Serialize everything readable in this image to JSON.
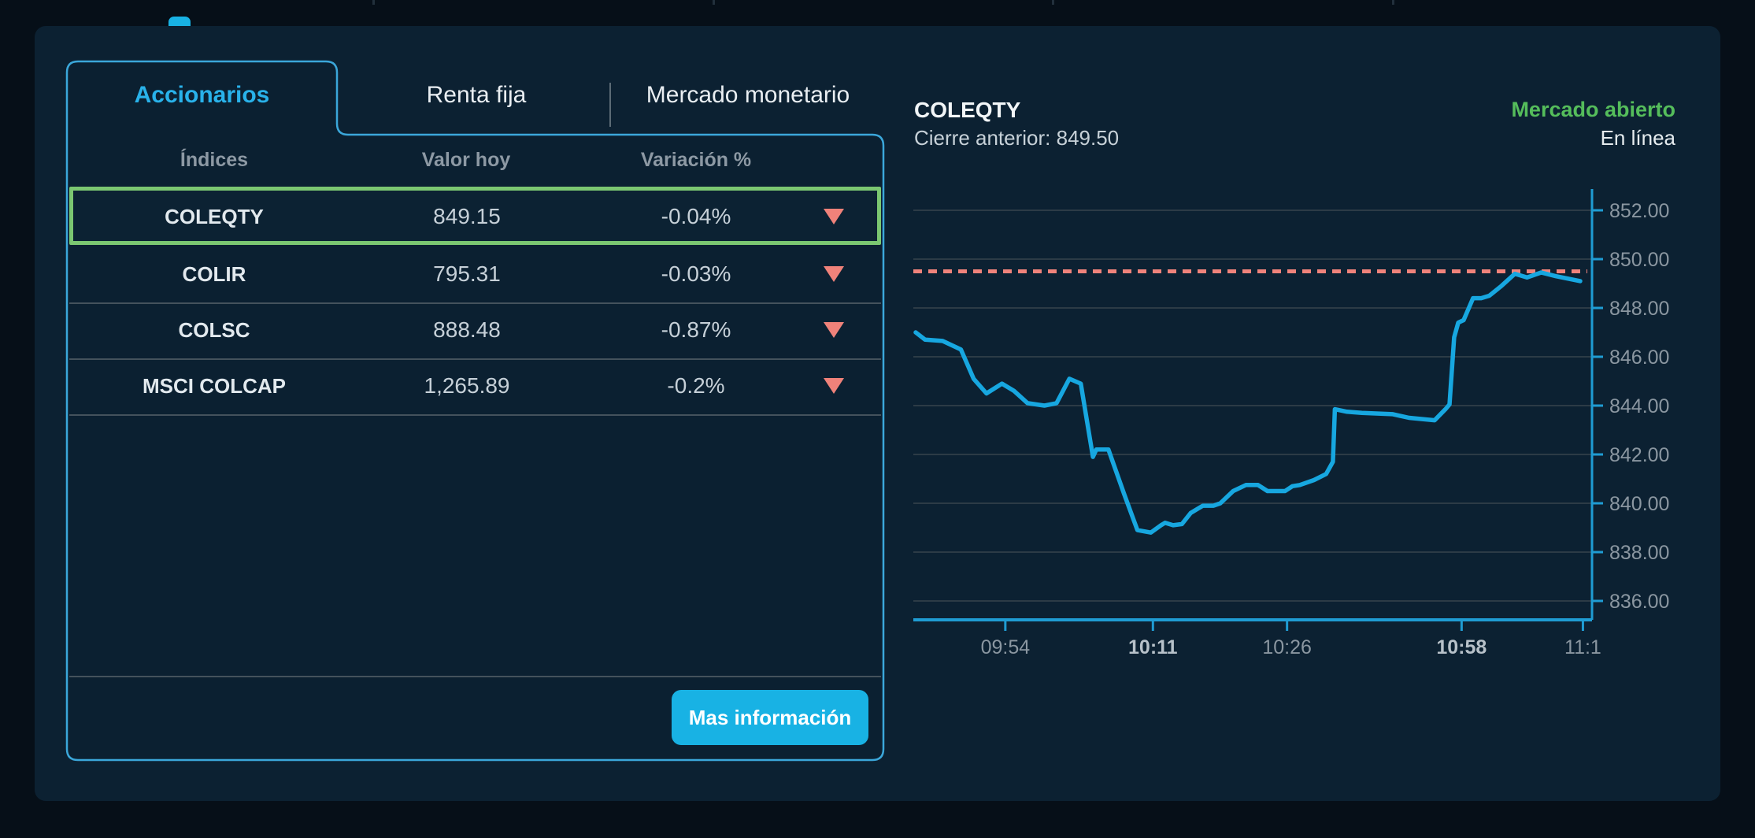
{
  "tabs": {
    "accionarios": "Accionarios",
    "renta_fija": "Renta fija",
    "mercado_monetario": "Mercado monetario"
  },
  "table": {
    "headers": {
      "indices": "Índices",
      "valor_hoy": "Valor hoy",
      "variacion": "Variación %"
    },
    "rows": [
      {
        "name": "COLEQTY",
        "value": "849.15",
        "variation": "-0.04%",
        "direction": "down",
        "selected": true
      },
      {
        "name": "COLIR",
        "value": "795.31",
        "variation": "-0.03%",
        "direction": "down",
        "selected": false
      },
      {
        "name": "COLSC",
        "value": "888.48",
        "variation": "-0.87%",
        "direction": "down",
        "selected": false
      },
      {
        "name": "MSCI COLCAP",
        "value": "1,265.89",
        "variation": "-0.2%",
        "direction": "down",
        "selected": false
      }
    ],
    "button_label": "Mas información"
  },
  "chart_header": {
    "title": "COLEQTY",
    "previous_close": "Cierre anterior: 849.50",
    "market_status": "Mercado abierto",
    "connection_status": "En línea"
  },
  "chart_data": {
    "type": "line",
    "title": "COLEQTY intraday price",
    "ylim": [
      836,
      852
    ],
    "y_ticks": [
      "852.00",
      "850.00",
      "848.00",
      "846.00",
      "844.00",
      "842.00",
      "840.00",
      "838.00",
      "836.00"
    ],
    "y_tick_values": [
      852,
      850,
      848,
      846,
      844,
      842,
      840,
      838,
      836
    ],
    "grid": true,
    "reference_line": {
      "value": 849.5,
      "style": "dotted",
      "meaning": "previous close",
      "color": "#f0837b"
    },
    "x_ticks": [
      {
        "label": "09:54",
        "pos": 0.133,
        "bold": false
      },
      {
        "label": "10:11",
        "pos": 0.352,
        "bold": true
      },
      {
        "label": "10:26",
        "pos": 0.551,
        "bold": false
      },
      {
        "label": "10:58",
        "pos": 0.81,
        "bold": true
      },
      {
        "label": "11:1",
        "pos": 0.99,
        "bold": false
      }
    ],
    "series": [
      {
        "name": "COLEQTY",
        "color": "#17a7e0",
        "points": [
          [
            0.0,
            847.0
          ],
          [
            0.014,
            846.7
          ],
          [
            0.04,
            846.65
          ],
          [
            0.067,
            846.3
          ],
          [
            0.086,
            845.1
          ],
          [
            0.105,
            844.5
          ],
          [
            0.128,
            844.9
          ],
          [
            0.146,
            844.6
          ],
          [
            0.166,
            844.1
          ],
          [
            0.191,
            844.0
          ],
          [
            0.209,
            844.1
          ],
          [
            0.228,
            845.1
          ],
          [
            0.245,
            844.9
          ],
          [
            0.263,
            841.9
          ],
          [
            0.268,
            842.2
          ],
          [
            0.286,
            842.2
          ],
          [
            0.309,
            840.4
          ],
          [
            0.329,
            838.9
          ],
          [
            0.349,
            838.8
          ],
          [
            0.364,
            839.1
          ],
          [
            0.37,
            839.2
          ],
          [
            0.382,
            839.1
          ],
          [
            0.395,
            839.15
          ],
          [
            0.408,
            839.6
          ],
          [
            0.426,
            839.9
          ],
          [
            0.442,
            839.9
          ],
          [
            0.452,
            840.0
          ],
          [
            0.471,
            840.5
          ],
          [
            0.49,
            840.75
          ],
          [
            0.508,
            840.75
          ],
          [
            0.522,
            840.5
          ],
          [
            0.548,
            840.5
          ],
          [
            0.559,
            840.7
          ],
          [
            0.57,
            840.75
          ],
          [
            0.591,
            840.95
          ],
          [
            0.609,
            841.2
          ],
          [
            0.619,
            841.7
          ],
          [
            0.622,
            843.85
          ],
          [
            0.64,
            843.75
          ],
          [
            0.662,
            843.7
          ],
          [
            0.708,
            843.65
          ],
          [
            0.732,
            843.5
          ],
          [
            0.77,
            843.4
          ],
          [
            0.786,
            843.85
          ],
          [
            0.792,
            844.05
          ],
          [
            0.799,
            846.8
          ],
          [
            0.805,
            847.4
          ],
          [
            0.813,
            847.5
          ],
          [
            0.827,
            848.4
          ],
          [
            0.839,
            848.4
          ],
          [
            0.851,
            848.5
          ],
          [
            0.869,
            848.9
          ],
          [
            0.889,
            849.4
          ],
          [
            0.907,
            849.25
          ],
          [
            0.928,
            849.45
          ],
          [
            0.95,
            849.3
          ],
          [
            0.986,
            849.1
          ]
        ]
      }
    ],
    "colors": {
      "grid": "#2c3b46",
      "axis": "#1f9cd3",
      "tick_label": "#8b97a1",
      "tick_label_bold": "#b7c1c9"
    }
  }
}
